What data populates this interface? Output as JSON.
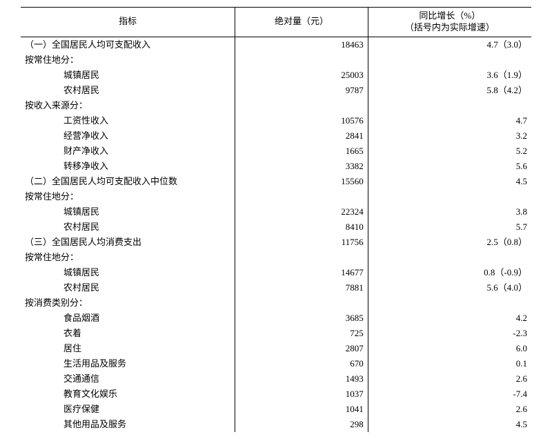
{
  "header": {
    "indicator": "指标",
    "absolute": "绝对量（元）",
    "growth_line1": "同比增长（%）",
    "growth_line2": "（括号内为实际增速）"
  },
  "rows": [
    {
      "indicator": "（一）全国居民人均可支配收入",
      "indent": 0,
      "value": "18463",
      "growth": "4.7（3.0）",
      "sep": true
    },
    {
      "indicator": "按常住地分：",
      "indent": 0,
      "value": "",
      "growth": ""
    },
    {
      "indicator": "城镇居民",
      "indent": 2,
      "value": "25003",
      "growth": "3.6（1.9）"
    },
    {
      "indicator": "农村居民",
      "indent": 2,
      "value": "9787",
      "growth": "5.8（4.2）"
    },
    {
      "indicator": "按收入来源分：",
      "indent": 0,
      "value": "",
      "growth": ""
    },
    {
      "indicator": "工资性收入",
      "indent": 2,
      "value": "10576",
      "growth": "4.7"
    },
    {
      "indicator": "经营净收入",
      "indent": 2,
      "value": "2841",
      "growth": "3.2"
    },
    {
      "indicator": "财产净收入",
      "indent": 2,
      "value": "1665",
      "growth": "5.2"
    },
    {
      "indicator": "转移净收入",
      "indent": 2,
      "value": "3382",
      "growth": "5.6"
    },
    {
      "indicator": "（二）全国居民人均可支配收入中位数",
      "indent": 0,
      "value": "15560",
      "growth": "4.5"
    },
    {
      "indicator": "按常住地分：",
      "indent": 0,
      "value": "",
      "growth": ""
    },
    {
      "indicator": "城镇居民",
      "indent": 2,
      "value": "22324",
      "growth": "3.8"
    },
    {
      "indicator": "农村居民",
      "indent": 2,
      "value": "8410",
      "growth": "5.7"
    },
    {
      "indicator": "（三）全国居民人均消费支出",
      "indent": 0,
      "value": "11756",
      "growth": "2.5（0.8）"
    },
    {
      "indicator": "按常住地分：",
      "indent": 0,
      "value": "",
      "growth": ""
    },
    {
      "indicator": "城镇居民",
      "indent": 2,
      "value": "14677",
      "growth": "0.8（-0.9）"
    },
    {
      "indicator": "农村居民",
      "indent": 2,
      "value": "7881",
      "growth": "5.6（4.0）"
    },
    {
      "indicator": "按消费类别分：",
      "indent": 0,
      "value": "",
      "growth": ""
    },
    {
      "indicator": "食品烟酒",
      "indent": 2,
      "value": "3685",
      "growth": "4.2"
    },
    {
      "indicator": "衣着",
      "indent": 2,
      "value": "725",
      "growth": "-2.3"
    },
    {
      "indicator": "居住",
      "indent": 2,
      "value": "2807",
      "growth": "6.0"
    },
    {
      "indicator": "生活用品及服务",
      "indent": 2,
      "value": "670",
      "growth": "0.1"
    },
    {
      "indicator": "交通通信",
      "indent": 2,
      "value": "1493",
      "growth": "2.6"
    },
    {
      "indicator": "教育文化娱乐",
      "indent": 2,
      "value": "1037",
      "growth": "-7.4"
    },
    {
      "indicator": "医疗保健",
      "indent": 2,
      "value": "1041",
      "growth": "2.6"
    },
    {
      "indicator": "其他用品及服务",
      "indent": 2,
      "value": "298",
      "growth": "4.5"
    }
  ]
}
